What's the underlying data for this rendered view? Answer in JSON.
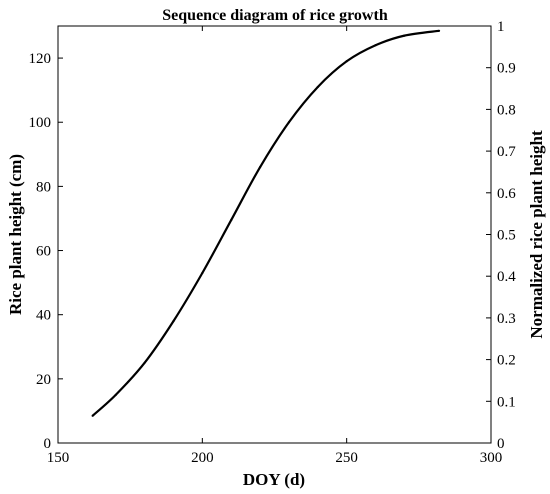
{
  "chart_data": {
    "type": "line",
    "title": "Sequence diagram of rice growth",
    "xlabel": "DOY (d)",
    "ylabel": "Rice plant height (cm)",
    "y2label": "Normalized rice plant height",
    "xlim": [
      150,
      300
    ],
    "ylim": [
      0,
      130
    ],
    "y2lim": [
      0,
      1
    ],
    "xticks": [
      "150",
      "200",
      "250",
      "300"
    ],
    "yticks": [
      "0",
      "20",
      "40",
      "60",
      "80",
      "100",
      "120"
    ],
    "y2ticks": [
      "0",
      "0.1",
      "0.2",
      "0.3",
      "0.4",
      "0.5",
      "0.6",
      "0.7",
      "0.8",
      "0.9",
      "1"
    ],
    "grid": false,
    "line_color": "#000000",
    "series": [
      {
        "x": [
          162,
          170,
          180,
          190,
          200,
          210,
          220,
          230,
          240,
          250,
          260,
          270,
          282
        ],
        "y": [
          8.5,
          15,
          25,
          38,
          53,
          69.5,
          86,
          100,
          111,
          119,
          124,
          127,
          128.5
        ]
      }
    ]
  }
}
